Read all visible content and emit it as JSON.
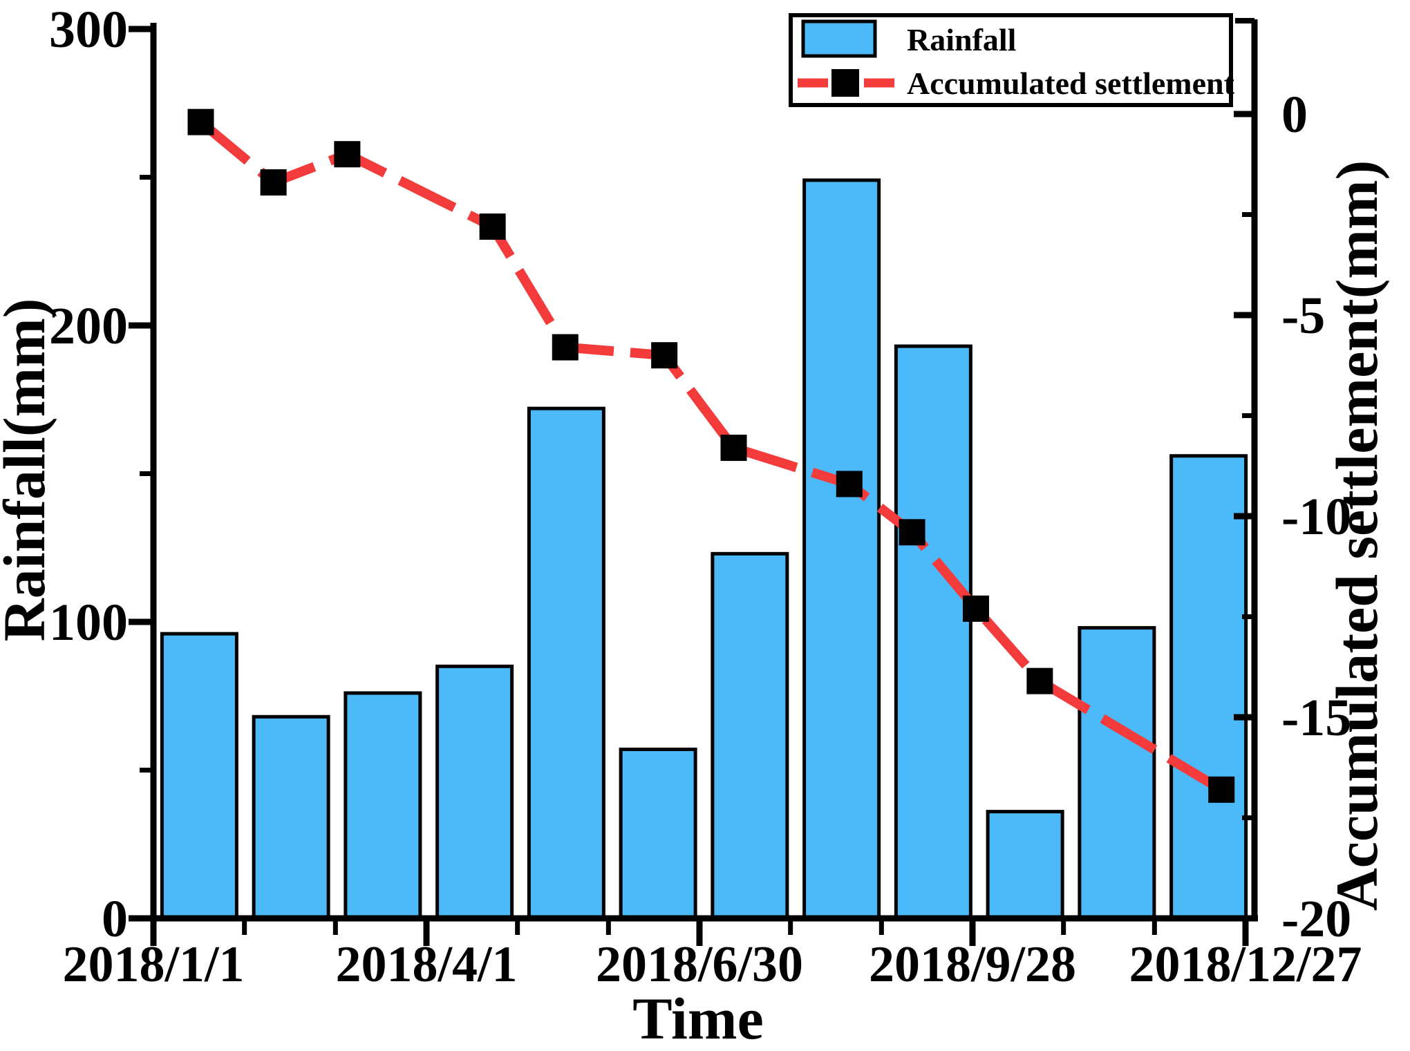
{
  "chart_data": {
    "type": [
      "bar",
      "line"
    ],
    "title": "",
    "x_axis": {
      "title": "Time",
      "major_tick_labels": [
        "2018/1/1",
        "2018/4/1",
        "2018/6/30",
        "2018/9/28",
        "2018/12/27"
      ],
      "minor_divisions_per_major": 3
    },
    "left_axis": {
      "title": "Rainfall(mm)",
      "range": [
        0,
        300
      ],
      "major_ticks": [
        0,
        100,
        200,
        300
      ],
      "minor_ticks": [
        50,
        150,
        250
      ]
    },
    "right_axis": {
      "title": "Accumulated settlement(mm)",
      "range": [
        -20,
        2.3
      ],
      "major_ticks": [
        0,
        -5,
        -10,
        -15,
        -20
      ],
      "minor_ticks": [
        -2.5,
        -7.5,
        -12.5,
        -17.5
      ]
    },
    "series": [
      {
        "name": "Rainfall",
        "type": "bar",
        "axis": "left",
        "values": [
          96,
          68,
          76,
          85,
          172,
          57,
          123,
          249,
          193,
          36,
          98,
          156
        ]
      },
      {
        "name": "Accumulated settlement",
        "type": "line",
        "axis": "right",
        "marker": "square",
        "x_frac": [
          0.043,
          0.109,
          0.176,
          0.308,
          0.374,
          0.464,
          0.527,
          0.632,
          0.689,
          0.747,
          0.805,
          0.97
        ],
        "values": [
          -0.2,
          -1.7,
          -1.0,
          -2.8,
          -5.8,
          -6.0,
          -8.3,
          -9.2,
          -10.4,
          -12.3,
          -14.1,
          -16.8
        ]
      }
    ],
    "legend": {
      "position": "top-right",
      "entries": [
        "Rainfall",
        "Accumulated settlement"
      ]
    },
    "colors": {
      "bar_fill": "#4cb9f8",
      "bar_stroke": "#000000",
      "line": "#f43b3b",
      "marker": "#000000",
      "background": "#ffffff"
    },
    "grid": false
  }
}
